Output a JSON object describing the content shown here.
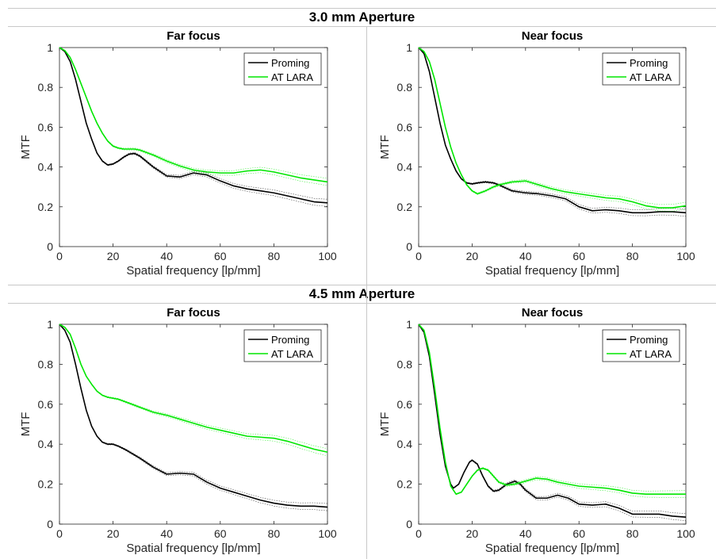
{
  "sections": [
    {
      "title": "3.0 mm Aperture",
      "panels": [
        {
          "title": "Far focus",
          "key": "far30"
        },
        {
          "title": "Near focus",
          "key": "near30"
        }
      ]
    },
    {
      "title": "4.5 mm Aperture",
      "panels": [
        {
          "title": "Far focus",
          "key": "far45"
        },
        {
          "title": "Near focus",
          "key": "near45"
        }
      ]
    }
  ],
  "colors": {
    "proming": "#000000",
    "atlara": "#00e600"
  },
  "chart_data": [
    {
      "type": "line",
      "title": "Far focus",
      "section": "3.0 mm Aperture",
      "xlabel": "Spatial frequency [lp/mm]",
      "ylabel": "MTF",
      "xlim": [
        0,
        100
      ],
      "ylim": [
        0,
        1
      ],
      "xticks": [
        0,
        20,
        40,
        60,
        80,
        100
      ],
      "yticks": [
        0,
        0.2,
        0.4,
        0.6,
        0.8,
        1
      ],
      "legend": "top-right",
      "series": [
        {
          "name": "Proming",
          "x": [
            0,
            2,
            4,
            6,
            8,
            10,
            12,
            14,
            16,
            18,
            20,
            22,
            24,
            26,
            28,
            30,
            35,
            40,
            45,
            50,
            55,
            60,
            65,
            70,
            75,
            80,
            85,
            90,
            95,
            100
          ],
          "y": [
            1,
            0.98,
            0.93,
            0.84,
            0.73,
            0.62,
            0.54,
            0.47,
            0.43,
            0.41,
            0.415,
            0.43,
            0.45,
            0.465,
            0.468,
            0.455,
            0.4,
            0.355,
            0.35,
            0.37,
            0.36,
            0.33,
            0.305,
            0.29,
            0.28,
            0.27,
            0.255,
            0.24,
            0.225,
            0.22
          ]
        },
        {
          "name": "AT LARA",
          "x": [
            0,
            2,
            4,
            6,
            8,
            10,
            12,
            14,
            16,
            18,
            20,
            22,
            24,
            26,
            28,
            30,
            35,
            40,
            45,
            50,
            55,
            60,
            65,
            70,
            75,
            80,
            85,
            90,
            95,
            100
          ],
          "y": [
            1,
            0.985,
            0.95,
            0.89,
            0.82,
            0.75,
            0.68,
            0.62,
            0.57,
            0.53,
            0.505,
            0.495,
            0.49,
            0.49,
            0.49,
            0.485,
            0.46,
            0.43,
            0.405,
            0.385,
            0.375,
            0.37,
            0.37,
            0.38,
            0.385,
            0.375,
            0.36,
            0.345,
            0.335,
            0.325
          ]
        }
      ]
    },
    {
      "type": "line",
      "title": "Near focus",
      "section": "3.0 mm Aperture",
      "xlabel": "Spatial frequency [lp/mm]",
      "ylabel": "MTF",
      "xlim": [
        0,
        100
      ],
      "ylim": [
        0,
        1
      ],
      "xticks": [
        0,
        20,
        40,
        60,
        80,
        100
      ],
      "yticks": [
        0,
        0.2,
        0.4,
        0.6,
        0.8,
        1
      ],
      "legend": "top-right",
      "series": [
        {
          "name": "Proming",
          "x": [
            0,
            2,
            4,
            6,
            8,
            10,
            12,
            14,
            16,
            18,
            20,
            22,
            25,
            28,
            30,
            35,
            40,
            45,
            50,
            55,
            60,
            65,
            70,
            75,
            80,
            85,
            90,
            95,
            100
          ],
          "y": [
            1,
            0.97,
            0.88,
            0.75,
            0.62,
            0.51,
            0.44,
            0.38,
            0.34,
            0.32,
            0.315,
            0.32,
            0.325,
            0.32,
            0.31,
            0.28,
            0.27,
            0.265,
            0.255,
            0.24,
            0.2,
            0.18,
            0.185,
            0.18,
            0.17,
            0.17,
            0.175,
            0.175,
            0.17
          ]
        },
        {
          "name": "AT LARA",
          "x": [
            0,
            2,
            4,
            6,
            8,
            10,
            12,
            14,
            16,
            18,
            20,
            22,
            25,
            28,
            30,
            35,
            40,
            45,
            50,
            55,
            60,
            65,
            70,
            75,
            80,
            85,
            90,
            95,
            100
          ],
          "y": [
            1,
            0.98,
            0.93,
            0.84,
            0.72,
            0.6,
            0.5,
            0.42,
            0.36,
            0.31,
            0.28,
            0.265,
            0.28,
            0.3,
            0.31,
            0.325,
            0.33,
            0.31,
            0.29,
            0.275,
            0.265,
            0.255,
            0.245,
            0.24,
            0.225,
            0.205,
            0.195,
            0.195,
            0.205
          ]
        }
      ]
    },
    {
      "type": "line",
      "title": "Far focus",
      "section": "4.5 mm Aperture",
      "xlabel": "Spatial frequency [lp/mm]",
      "ylabel": "MTF",
      "xlim": [
        0,
        100
      ],
      "ylim": [
        0,
        1
      ],
      "xticks": [
        0,
        20,
        40,
        60,
        80,
        100
      ],
      "yticks": [
        0,
        0.2,
        0.4,
        0.6,
        0.8,
        1
      ],
      "legend": "top-right",
      "series": [
        {
          "name": "Proming",
          "x": [
            0,
            2,
            4,
            6,
            8,
            10,
            12,
            14,
            16,
            18,
            20,
            22,
            25,
            30,
            35,
            40,
            45,
            50,
            55,
            60,
            65,
            70,
            75,
            80,
            85,
            90,
            95,
            100
          ],
          "y": [
            1,
            0.97,
            0.91,
            0.8,
            0.68,
            0.57,
            0.49,
            0.44,
            0.41,
            0.4,
            0.4,
            0.39,
            0.37,
            0.33,
            0.285,
            0.25,
            0.255,
            0.25,
            0.21,
            0.18,
            0.16,
            0.14,
            0.12,
            0.105,
            0.095,
            0.09,
            0.09,
            0.085
          ]
        },
        {
          "name": "AT LARA",
          "x": [
            0,
            2,
            4,
            6,
            8,
            10,
            12,
            14,
            16,
            18,
            20,
            22,
            25,
            30,
            35,
            40,
            45,
            50,
            55,
            60,
            65,
            70,
            75,
            80,
            85,
            90,
            95,
            100
          ],
          "y": [
            1,
            0.985,
            0.95,
            0.88,
            0.8,
            0.74,
            0.7,
            0.665,
            0.645,
            0.635,
            0.63,
            0.625,
            0.61,
            0.585,
            0.56,
            0.545,
            0.525,
            0.505,
            0.485,
            0.47,
            0.455,
            0.44,
            0.435,
            0.43,
            0.415,
            0.395,
            0.375,
            0.36
          ]
        }
      ]
    },
    {
      "type": "line",
      "title": "Near focus",
      "section": "4.5 mm Aperture",
      "xlabel": "Spatial frequency [lp/mm]",
      "ylabel": "MTF",
      "xlim": [
        0,
        100
      ],
      "ylim": [
        0,
        1
      ],
      "xticks": [
        0,
        20,
        40,
        60,
        80,
        100
      ],
      "yticks": [
        0,
        0.2,
        0.4,
        0.6,
        0.8,
        1
      ],
      "legend": "top-right",
      "series": [
        {
          "name": "Proming",
          "x": [
            0,
            2,
            4,
            6,
            8,
            10,
            12,
            13,
            15,
            17,
            19,
            20,
            22,
            24,
            26,
            28,
            30,
            33,
            36,
            38,
            40,
            44,
            48,
            52,
            56,
            60,
            65,
            70,
            75,
            80,
            85,
            90,
            95,
            100
          ],
          "y": [
            1,
            0.96,
            0.84,
            0.65,
            0.45,
            0.29,
            0.2,
            0.18,
            0.2,
            0.26,
            0.31,
            0.32,
            0.3,
            0.24,
            0.19,
            0.165,
            0.17,
            0.2,
            0.215,
            0.2,
            0.17,
            0.13,
            0.13,
            0.145,
            0.13,
            0.1,
            0.095,
            0.1,
            0.08,
            0.05,
            0.05,
            0.05,
            0.04,
            0.035
          ]
        },
        {
          "name": "AT LARA",
          "x": [
            0,
            2,
            4,
            6,
            8,
            10,
            12,
            14,
            16,
            18,
            20,
            22,
            24,
            26,
            28,
            30,
            33,
            36,
            40,
            44,
            48,
            52,
            56,
            60,
            65,
            70,
            75,
            80,
            85,
            90,
            95,
            100
          ],
          "y": [
            1,
            0.97,
            0.86,
            0.68,
            0.48,
            0.31,
            0.19,
            0.15,
            0.16,
            0.2,
            0.24,
            0.27,
            0.28,
            0.27,
            0.24,
            0.21,
            0.195,
            0.2,
            0.215,
            0.23,
            0.225,
            0.21,
            0.2,
            0.19,
            0.185,
            0.18,
            0.17,
            0.155,
            0.15,
            0.15,
            0.15,
            0.15
          ]
        }
      ]
    }
  ]
}
